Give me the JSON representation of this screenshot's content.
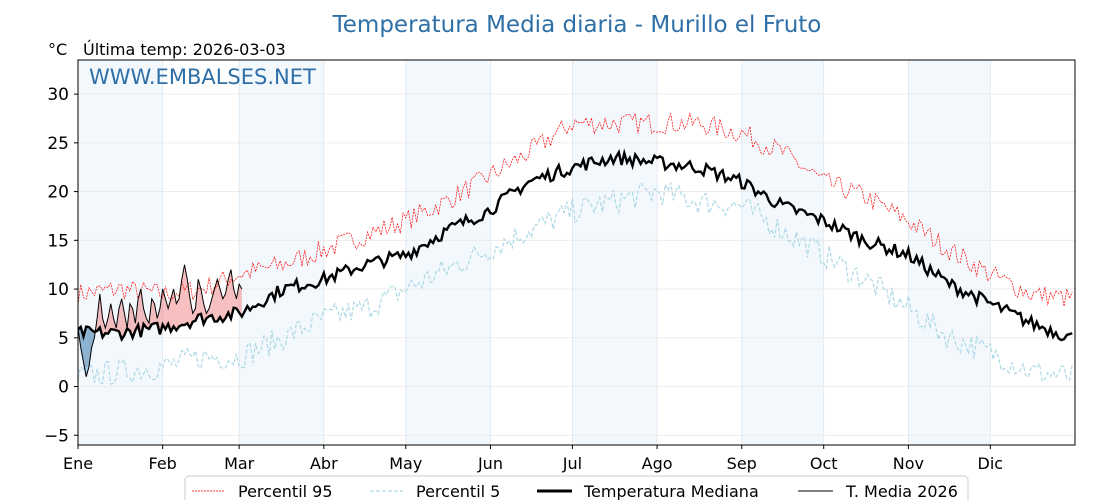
{
  "chart_data": {
    "type": "line",
    "title": "Temperatura Media diaria - Murillo el Fruto",
    "unit_label": "°C",
    "subtitle": "Última temp: 2026-03-03",
    "watermark": "WWW.EMBALSES.NET",
    "ylim": [
      -6,
      33.5
    ],
    "yticks": [
      30,
      25,
      20,
      15,
      10,
      5,
      0,
      -5
    ],
    "ytick_labels": [
      "30",
      "25",
      "20",
      "15",
      "10",
      "5",
      "0",
      "−5"
    ],
    "months": [
      "Ene",
      "Feb",
      "Mar",
      "Abr",
      "May",
      "Jun",
      "Jul",
      "Ago",
      "Sep",
      "Oct",
      "Nov",
      "Dic"
    ],
    "month_start_days": [
      0,
      31,
      59,
      90,
      120,
      151,
      181,
      212,
      243,
      273,
      304,
      334
    ],
    "anchor_days": [
      0,
      15,
      31,
      45,
      59,
      75,
      90,
      105,
      120,
      135,
      150,
      165,
      181,
      196,
      212,
      227,
      243,
      258,
      273,
      288,
      304,
      319,
      334,
      349,
      364
    ],
    "series": [
      {
        "name": "Percentil 95",
        "color": "#ff0000",
        "values": [
          9.5,
          10,
          9.5,
          10,
          11.5,
          12.5,
          14,
          15.5,
          17,
          19,
          21.5,
          24,
          27,
          27,
          27,
          27,
          26,
          24,
          21,
          19.5,
          17,
          14,
          11.5,
          9.5,
          9
        ]
      },
      {
        "name": "Percentil 5",
        "color": "#add8e6",
        "values": [
          1,
          1.5,
          2,
          3,
          3,
          5,
          7,
          8,
          10,
          12,
          14,
          16,
          18,
          19,
          20,
          19,
          18.5,
          16,
          13.5,
          11,
          8,
          5,
          3.5,
          1.5,
          1
        ]
      },
      {
        "name": "Temperatura Mediana",
        "color": "#000000",
        "values": [
          5.5,
          5.5,
          6,
          7,
          7.5,
          10,
          11,
          12.5,
          13.5,
          16,
          18,
          21,
          22.5,
          23.5,
          23,
          22.5,
          21,
          18.5,
          17,
          15,
          13.5,
          10.5,
          8.5,
          6.5,
          5
        ]
      },
      {
        "name": "T. Media 2026",
        "color": "#000000",
        "values": [
          6,
          4,
          2.5,
          1,
          2,
          4,
          5,
          7,
          9.5,
          7,
          6,
          7,
          8.5,
          7,
          6,
          8,
          9,
          7.5,
          6,
          8.5,
          8,
          6.5,
          9,
          10,
          8,
          7,
          6.5,
          9,
          8.5,
          7,
          8,
          10,
          9,
          8,
          9,
          10,
          8.5,
          9,
          11,
          12.5,
          11,
          9,
          7.5,
          8,
          11,
          10,
          8.5,
          7.5,
          8,
          9,
          10,
          11,
          10,
          9,
          9.5,
          11,
          12,
          10,
          9,
          10.5,
          10
        ]
      }
    ],
    "fill_above_color": "#f08080",
    "fill_below_color": "#4682b4"
  }
}
